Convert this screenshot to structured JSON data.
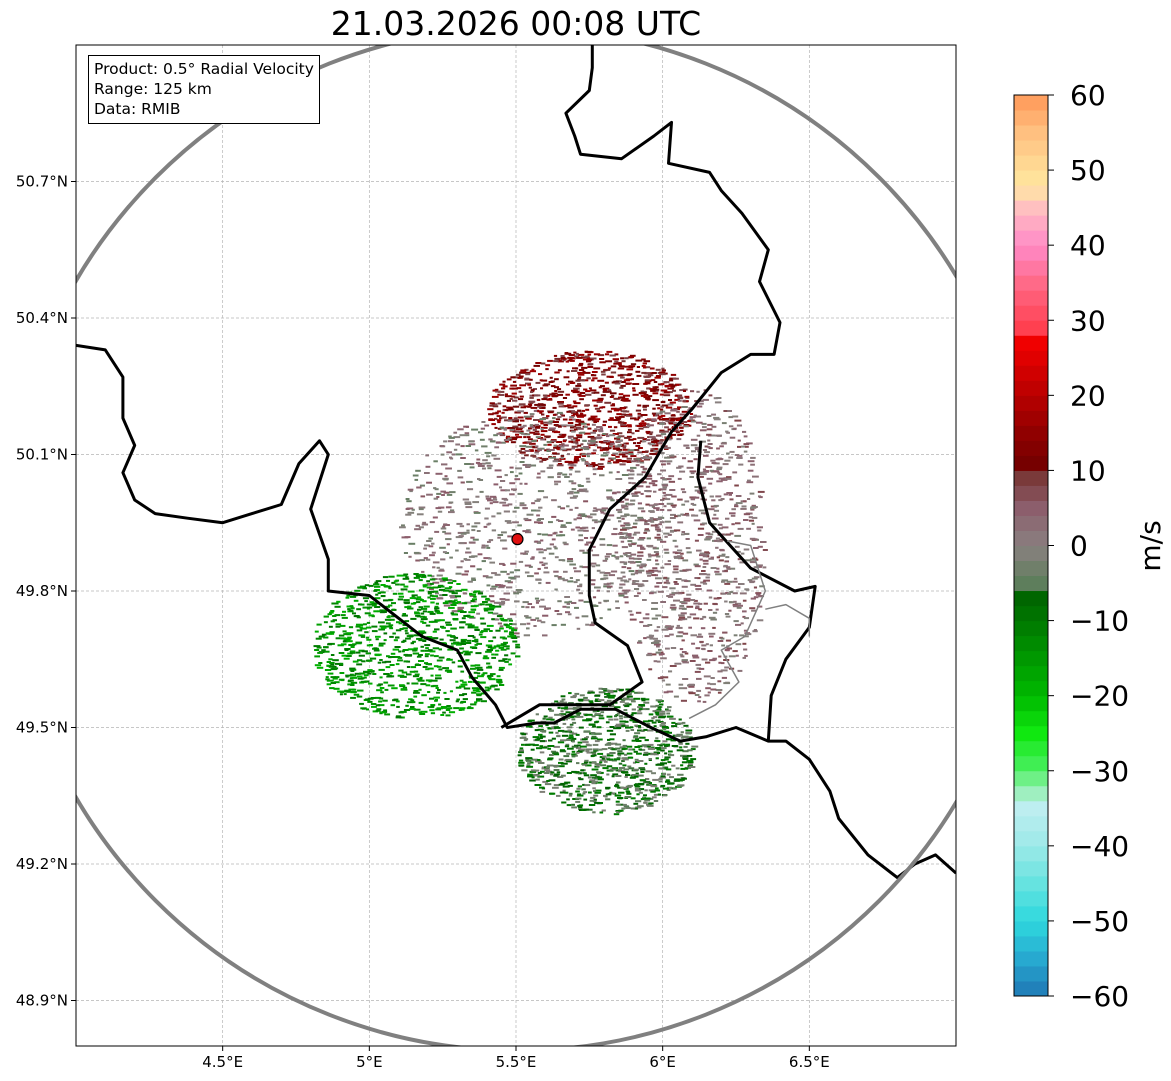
{
  "title": "21.03.2026 00:08 UTC",
  "info": {
    "product": "Product: 0.5° Radial Velocity",
    "range": "Range: 125 km",
    "source": "Data: RMIB"
  },
  "colors": {
    "range_ring": "#808080",
    "border": "#000000",
    "grid": "#b5b5b5",
    "radar_site": "#e01010"
  },
  "chart_data": {
    "type": "heatmap",
    "title": "21.03.2026 00:08 UTC",
    "xlabel": "",
    "ylabel": "",
    "xlim": [
      4.0,
      7.0
    ],
    "ylim": [
      48.8,
      51.0
    ],
    "x_ticks": [
      {
        "value": 4.5,
        "label": "4.5°E"
      },
      {
        "value": 5.0,
        "label": "5°E"
      },
      {
        "value": 5.5,
        "label": "5.5°E"
      },
      {
        "value": 6.0,
        "label": "6°E"
      },
      {
        "value": 6.5,
        "label": "6.5°E"
      }
    ],
    "y_ticks": [
      {
        "value": 48.9,
        "label": "48.9°N"
      },
      {
        "value": 49.2,
        "label": "49.2°N"
      },
      {
        "value": 49.5,
        "label": "49.5°N"
      },
      {
        "value": 49.8,
        "label": "49.8°N"
      },
      {
        "value": 50.1,
        "label": "50.1°N"
      },
      {
        "value": 50.4,
        "label": "50.4°N"
      },
      {
        "value": 50.7,
        "label": "50.7°N"
      }
    ],
    "grid": true,
    "radar_site": {
      "lon": 5.505,
      "lat": 49.914
    },
    "range_km": 125,
    "colorbar": {
      "label": "m/s",
      "min": -60,
      "max": 60,
      "ticks": [
        -60,
        -50,
        -40,
        -30,
        -20,
        -10,
        0,
        10,
        20,
        30,
        40,
        50,
        60
      ],
      "stops": [
        {
          "value": -60,
          "color": "#1f77b4"
        },
        {
          "value": -55,
          "color": "#27a9d0"
        },
        {
          "value": -50,
          "color": "#2ed8de"
        },
        {
          "value": -45,
          "color": "#66e3e0"
        },
        {
          "value": -40,
          "color": "#9ce9e8"
        },
        {
          "value": -35,
          "color": "#bdeef0"
        },
        {
          "value": -32,
          "color": "#90f0a8"
        },
        {
          "value": -30,
          "color": "#4cf064"
        },
        {
          "value": -25,
          "color": "#10e810"
        },
        {
          "value": -20,
          "color": "#00b800"
        },
        {
          "value": -15,
          "color": "#009800"
        },
        {
          "value": -10,
          "color": "#007800"
        },
        {
          "value": -6,
          "color": "#006000"
        },
        {
          "value": -5,
          "color": "#5e7e5c"
        },
        {
          "value": 0,
          "color": "#8a8080"
        },
        {
          "value": 5,
          "color": "#8c5e6c"
        },
        {
          "value": 9,
          "color": "#7a3a3a"
        },
        {
          "value": 10,
          "color": "#700000"
        },
        {
          "value": 15,
          "color": "#900000"
        },
        {
          "value": 20,
          "color": "#b80000"
        },
        {
          "value": 25,
          "color": "#e00000"
        },
        {
          "value": 28,
          "color": "#f80000"
        },
        {
          "value": 29,
          "color": "#ff4050"
        },
        {
          "value": 35,
          "color": "#ff6a88"
        },
        {
          "value": 40,
          "color": "#ff8ac8"
        },
        {
          "value": 45,
          "color": "#ffc0c0"
        },
        {
          "value": 48,
          "color": "#ffe8a0"
        },
        {
          "value": 55,
          "color": "#ffc080"
        },
        {
          "value": 60,
          "color": "#ff9858"
        }
      ]
    },
    "echo_regions": [
      {
        "name": "outbound-north-east",
        "lon": 5.75,
        "lat": 50.2,
        "rx": 0.35,
        "ry": 0.13,
        "velocity": 12
      },
      {
        "name": "near-zero-centre",
        "lon": 5.55,
        "lat": 49.95,
        "rx": 0.45,
        "ry": 0.25,
        "velocity": 1
      },
      {
        "name": "inbound-south-west",
        "lon": 5.15,
        "lat": 49.68,
        "rx": 0.35,
        "ry": 0.16,
        "velocity": -14
      },
      {
        "name": "near-zero-south-east",
        "lon": 5.8,
        "lat": 49.45,
        "rx": 0.3,
        "ry": 0.14,
        "velocity": -6
      },
      {
        "name": "east-mixed",
        "lon": 6.1,
        "lat": 49.9,
        "rx": 0.25,
        "ry": 0.35,
        "velocity": 3
      }
    ],
    "borders": [
      {
        "name": "belgium-france-west",
        "kind": "national",
        "points": [
          [
            4.0,
            50.34
          ],
          [
            4.1,
            50.33
          ],
          [
            4.16,
            50.27
          ],
          [
            4.16,
            50.18
          ],
          [
            4.2,
            50.12
          ],
          [
            4.16,
            50.06
          ],
          [
            4.2,
            50.0
          ],
          [
            4.27,
            49.97
          ],
          [
            4.38,
            49.96
          ],
          [
            4.5,
            49.95
          ],
          [
            4.6,
            49.97
          ],
          [
            4.7,
            49.99
          ],
          [
            4.76,
            50.08
          ],
          [
            4.83,
            50.13
          ],
          [
            4.86,
            50.1
          ],
          [
            4.8,
            49.98
          ],
          [
            4.86,
            49.87
          ],
          [
            4.86,
            49.8
          ],
          [
            5.0,
            49.79
          ],
          [
            5.1,
            49.74
          ],
          [
            5.18,
            49.7
          ],
          [
            5.3,
            49.67
          ],
          [
            5.35,
            49.61
          ],
          [
            5.43,
            49.55
          ],
          [
            5.47,
            49.5
          ],
          [
            5.57,
            49.51
          ],
          [
            5.63,
            49.51
          ],
          [
            5.72,
            49.54
          ],
          [
            5.84,
            49.54
          ],
          [
            5.96,
            49.5
          ],
          [
            6.06,
            49.47
          ],
          [
            6.15,
            49.48
          ],
          [
            6.25,
            49.5
          ],
          [
            6.36,
            49.47
          ],
          [
            6.42,
            49.47
          ],
          [
            6.5,
            49.43
          ],
          [
            6.57,
            49.36
          ],
          [
            6.6,
            49.3
          ],
          [
            6.7,
            49.22
          ],
          [
            6.8,
            49.17
          ],
          [
            6.86,
            49.2
          ],
          [
            6.93,
            49.22
          ],
          [
            7.0,
            49.18
          ]
        ]
      },
      {
        "name": "belgium-luxembourg-germany",
        "kind": "national",
        "points": [
          [
            5.45,
            49.5
          ],
          [
            5.58,
            49.55
          ],
          [
            5.73,
            49.55
          ],
          [
            5.82,
            49.55
          ],
          [
            5.93,
            49.6
          ],
          [
            5.88,
            49.68
          ],
          [
            5.77,
            49.73
          ],
          [
            5.75,
            49.79
          ],
          [
            5.75,
            49.89
          ],
          [
            5.82,
            49.98
          ],
          [
            5.94,
            50.05
          ],
          [
            6.03,
            50.15
          ],
          [
            6.1,
            50.2
          ],
          [
            6.2,
            50.28
          ],
          [
            6.3,
            50.32
          ],
          [
            6.38,
            50.32
          ],
          [
            6.4,
            50.39
          ],
          [
            6.33,
            50.48
          ],
          [
            6.36,
            50.55
          ],
          [
            6.27,
            50.63
          ],
          [
            6.2,
            50.68
          ],
          [
            6.16,
            50.72
          ],
          [
            6.02,
            50.74
          ],
          [
            6.03,
            50.83
          ],
          [
            5.97,
            50.8
          ],
          [
            5.86,
            50.75
          ],
          [
            5.72,
            50.76
          ],
          [
            5.7,
            50.8
          ],
          [
            5.67,
            50.85
          ],
          [
            5.75,
            50.9
          ],
          [
            5.76,
            50.95
          ],
          [
            5.76,
            51.0
          ]
        ]
      },
      {
        "name": "luxembourg-germany-france",
        "kind": "national",
        "points": [
          [
            6.13,
            50.13
          ],
          [
            6.12,
            50.05
          ],
          [
            6.16,
            49.95
          ],
          [
            6.23,
            49.9
          ],
          [
            6.3,
            49.85
          ],
          [
            6.45,
            49.8
          ],
          [
            6.52,
            49.81
          ],
          [
            6.5,
            49.72
          ],
          [
            6.42,
            49.65
          ],
          [
            6.37,
            49.57
          ],
          [
            6.36,
            49.47
          ]
        ]
      },
      {
        "name": "luxembourg-district",
        "kind": "regional",
        "points": [
          [
            6.22,
            49.91
          ],
          [
            6.3,
            49.9
          ],
          [
            6.35,
            49.8
          ],
          [
            6.28,
            49.7
          ],
          [
            6.2,
            49.67
          ],
          [
            6.26,
            49.6
          ],
          [
            6.18,
            49.55
          ],
          [
            6.09,
            49.52
          ]
        ]
      },
      {
        "name": "germany-state",
        "kind": "regional",
        "points": [
          [
            6.35,
            49.76
          ],
          [
            6.42,
            49.77
          ],
          [
            6.5,
            49.74
          ],
          [
            6.5,
            49.7
          ]
        ]
      }
    ]
  }
}
